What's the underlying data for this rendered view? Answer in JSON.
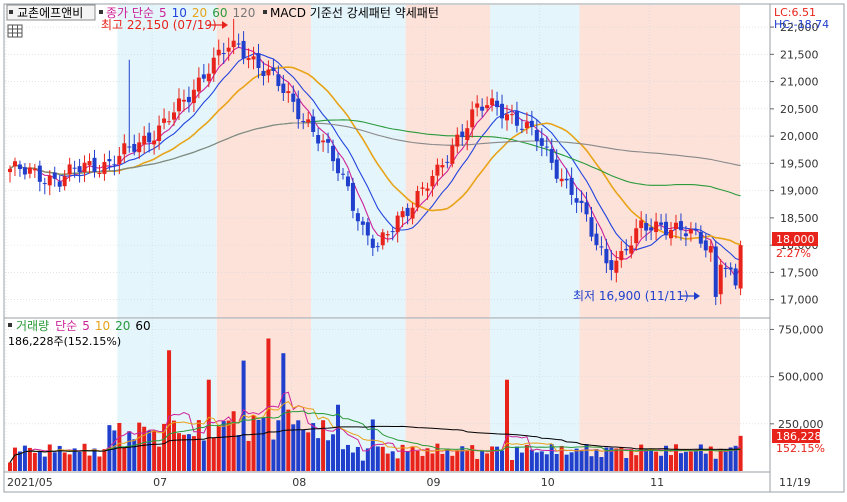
{
  "header": {
    "stock_name": "교촌에프앤비",
    "price_legend_prefix": "종가 단순",
    "ma_periods": [
      "5",
      "10",
      "20",
      "60",
      "120"
    ],
    "indicator_label": "MACD 기준선 강세패턴 약세패턴",
    "lc_label": "LC:6.51",
    "hc_label": "HC:-18.74"
  },
  "annotations": {
    "high_label": "최고 22,150 (07/19)",
    "low_label": "최저 16,900 (11/11)"
  },
  "current": {
    "price": "18,000",
    "price_change": "2.27%",
    "volume": "186,228",
    "volume_change": "152.15%"
  },
  "volume_header": {
    "title": "거래량",
    "ma_prefix": "단순",
    "ma_periods": [
      "5",
      "10",
      "20",
      "60"
    ],
    "current_label": "186,228주(152.15%)"
  },
  "colors": {
    "up": "#e8231b",
    "down": "#1f3fcc",
    "ma5": "#cc2299",
    "ma10": "#2244dd",
    "ma20": "#e8a317",
    "ma60": "#2a9a3a",
    "ma120": "#888888",
    "strong_band": "#fde2da",
    "weak_band": "#e4f5fb"
  },
  "chart_data": [
    {
      "type": "candlestick",
      "title": "교촌에프앤비",
      "x_tick_labels": [
        "2021/05",
        "07",
        "08",
        "09",
        "10",
        "11",
        "11/19"
      ],
      "y_tick_labels": [
        "22,000",
        "21,500",
        "21,000",
        "20,500",
        "20,000",
        "19,500",
        "19,000",
        "18,500",
        "18,000",
        "17,500",
        "17,000"
      ],
      "ylim": [
        16700,
        22350
      ],
      "series": [
        {
          "name": "5",
          "color": "#cc2299",
          "kind": "moving-average"
        },
        {
          "name": "10",
          "color": "#2244dd",
          "kind": "moving-average"
        },
        {
          "name": "20",
          "color": "#e8a317",
          "kind": "moving-average"
        },
        {
          "name": "60",
          "color": "#2a9a3a",
          "kind": "moving-average"
        },
        {
          "name": "120",
          "color": "#888888",
          "kind": "moving-average"
        }
      ],
      "regions": [
        {
          "label": "강세패턴",
          "start_index": 22,
          "end_index": 41
        },
        {
          "label": "약세패턴",
          "start_index": 42,
          "end_index": 60
        },
        {
          "label": "강세패턴",
          "start_index": 61,
          "end_index": 79
        },
        {
          "label": "약세패턴",
          "start_index": 80,
          "end_index": 96
        },
        {
          "label": "강세패턴",
          "start_index": 97,
          "end_index": 114
        },
        {
          "label": "약세패턴",
          "start_index": 115,
          "end_index": 147
        }
      ],
      "high": {
        "value": 22150,
        "date": "07/19"
      },
      "low": {
        "value": 16900,
        "date": "11/11"
      },
      "last_close": 18000,
      "last_change_pct": 2.27
    },
    {
      "type": "bar",
      "title": "거래량",
      "y_tick_labels": [
        "750,000",
        "500,000",
        "250,000"
      ],
      "ylim": [
        0,
        800000
      ],
      "series": [
        {
          "name": "5",
          "color": "#cc2299",
          "kind": "moving-average"
        },
        {
          "name": "10",
          "color": "#e8a317",
          "kind": "moving-average"
        },
        {
          "name": "20",
          "color": "#2a9a3a",
          "kind": "moving-average"
        },
        {
          "name": "60",
          "color": "#000000",
          "kind": "moving-average"
        }
      ],
      "last_volume": 186228,
      "last_change_pct": 152.15
    }
  ]
}
